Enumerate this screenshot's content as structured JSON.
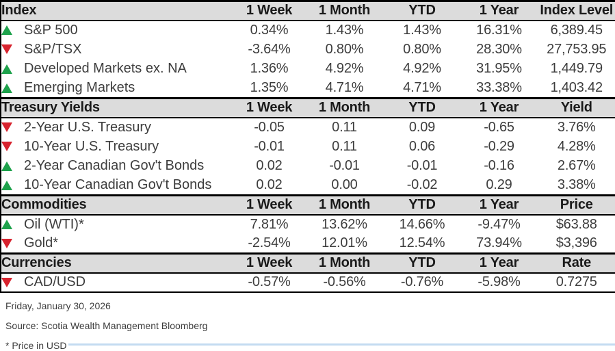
{
  "colors": {
    "up": "#1ea24c",
    "down": "#d7232e",
    "header_bg": "#dcdcdc",
    "accent_line": "#c3dbf1"
  },
  "sections": [
    {
      "header": {
        "label": "Index",
        "cols": [
          "1 Week",
          "1 Month",
          "YTD",
          "1 Year",
          "Index Level"
        ]
      },
      "rows": [
        {
          "direction": "up",
          "name": "S&P 500",
          "values": [
            "0.34%",
            "1.43%",
            "1.43%",
            "16.31%",
            "6,389.45"
          ]
        },
        {
          "direction": "down",
          "name": "S&P/TSX",
          "values": [
            "-3.64%",
            "0.80%",
            "0.80%",
            "28.30%",
            "27,753.95"
          ]
        },
        {
          "direction": "up",
          "name": "Developed Markets ex. NA",
          "values": [
            "1.36%",
            "4.92%",
            "4.92%",
            "31.95%",
            "1,449.79"
          ]
        },
        {
          "direction": "up",
          "name": "Emerging Markets",
          "values": [
            "1.35%",
            "4.71%",
            "4.71%",
            "33.38%",
            "1,403.42"
          ]
        }
      ]
    },
    {
      "header": {
        "label": "Treasury Yields",
        "cols": [
          "1 Week",
          "1 Month",
          "YTD",
          "1 Year",
          "Yield"
        ]
      },
      "rows": [
        {
          "direction": "down",
          "name": "2-Year U.S. Treasury",
          "values": [
            "-0.05",
            "0.11",
            "0.09",
            "-0.65",
            "3.76%"
          ]
        },
        {
          "direction": "down",
          "name": "10-Year U.S. Treasury",
          "values": [
            "-0.01",
            "0.11",
            "0.06",
            "-0.29",
            "4.28%"
          ]
        },
        {
          "direction": "up",
          "name": "2-Year Canadian Gov't Bonds",
          "values": [
            "0.02",
            "-0.01",
            "-0.01",
            "-0.16",
            "2.67%"
          ]
        },
        {
          "direction": "up",
          "name": "10-Year Canadian Gov't Bonds",
          "values": [
            "0.02",
            "0.00",
            "-0.02",
            "0.29",
            "3.38%"
          ]
        }
      ]
    },
    {
      "header": {
        "label": "Commodities",
        "cols": [
          "1 Week",
          "1 Month",
          "YTD",
          "1 Year",
          "Price"
        ]
      },
      "rows": [
        {
          "direction": "up",
          "name": "Oil (WTI)*",
          "values": [
            "7.81%",
            "13.62%",
            "14.66%",
            "-9.47%",
            "$63.88"
          ]
        },
        {
          "direction": "down",
          "name": "Gold*",
          "values": [
            "-2.54%",
            "12.01%",
            "12.54%",
            "73.94%",
            "$3,396"
          ]
        }
      ]
    },
    {
      "header": {
        "label": "Currencies",
        "cols": [
          "1 Week",
          "1 Month",
          "YTD",
          "1 Year",
          "Rate"
        ]
      },
      "rows": [
        {
          "direction": "down",
          "name": "CAD/USD",
          "values": [
            "-0.57%",
            "-0.56%",
            "-0.76%",
            "-5.98%",
            "0.7275"
          ]
        }
      ]
    }
  ],
  "footer": {
    "date": "Friday, January 30, 2026",
    "source": "Source: Scotia Wealth Management Bloomberg",
    "note": "* Price in USD"
  }
}
